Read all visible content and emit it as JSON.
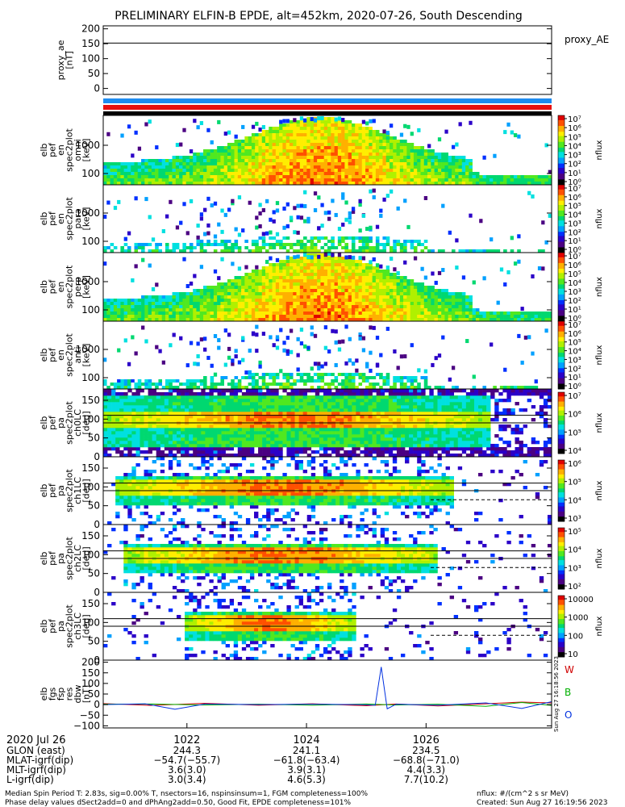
{
  "title": "PRELIMINARY ELFIN-B EPDE, alt=452km, 2020-07-26, South Descending",
  "colors": {
    "ae_line": "#000000",
    "flag_blue": "#1e8cf0",
    "flag_red": "#e81010",
    "flag_black": "#000000",
    "comp_w": "#d00000",
    "comp_b": "#00b000",
    "comp_o": "#0030e0",
    "colormap": [
      "#000000",
      "#4b0082",
      "#2b00c8",
      "#0030ff",
      "#00a0ff",
      "#00e0e0",
      "#00d870",
      "#50e820",
      "#b0f000",
      "#ffee00",
      "#ffb000",
      "#ff5000",
      "#e00000"
    ]
  },
  "chart_data": [
    {
      "type": "line",
      "panel": "proxy_ae",
      "ylabel_lines": [
        "proxy_ae",
        "[nT]"
      ],
      "right_label": "proxy_AE",
      "ylim": [
        -20,
        210
      ],
      "yticks": [
        "0",
        "50",
        "100",
        "150",
        "200"
      ],
      "series": [
        {
          "x": [
            1020.6,
            1028.1
          ],
          "y": [
            152,
            152
          ]
        }
      ]
    },
    {
      "type": "heatmap",
      "panel": "energy-omni",
      "ylabel_lines": [
        "elb",
        "pef",
        "en",
        "spec2plot",
        "omni",
        "[keV]"
      ],
      "yscale": "log",
      "yticks": [
        "100",
        "1000"
      ],
      "colorbar": {
        "label": "nflux",
        "ticks": [
          "10⁰",
          "10¹",
          "10²",
          "10³",
          "10⁴",
          "10⁵",
          "10⁶",
          "10⁷"
        ]
      }
    },
    {
      "type": "heatmap",
      "panel": "energy-para",
      "ylabel_lines": [
        "elb",
        "pef",
        "en",
        "spec2plot",
        "para",
        "[keV]"
      ],
      "yscale": "log",
      "yticks": [
        "100",
        "1000"
      ],
      "colorbar": {
        "label": "nflux",
        "ticks": [
          "10⁰",
          "10¹",
          "10²",
          "10³",
          "10⁴",
          "10⁵",
          "10⁶",
          "10⁷"
        ]
      }
    },
    {
      "type": "heatmap",
      "panel": "energy-perp",
      "ylabel_lines": [
        "elb",
        "pef",
        "en",
        "spec2plot",
        "perp",
        "[keV]"
      ],
      "yscale": "log",
      "yticks": [
        "100",
        "1000"
      ],
      "colorbar": {
        "label": "nflux",
        "ticks": [
          "10⁰",
          "10¹",
          "10²",
          "10³",
          "10⁴",
          "10⁵",
          "10⁶",
          "10⁷"
        ]
      }
    },
    {
      "type": "heatmap",
      "panel": "energy-anti",
      "ylabel_lines": [
        "elb",
        "pef",
        "en",
        "spec2plot",
        "anti",
        "[keV]"
      ],
      "yscale": "log",
      "yticks": [
        "100",
        "1000"
      ],
      "colorbar": {
        "label": "nflux",
        "ticks": [
          "10⁰",
          "10¹",
          "10²",
          "10³",
          "10⁴",
          "10⁵",
          "10⁶",
          "10⁷"
        ]
      }
    },
    {
      "type": "heatmap",
      "panel": "pa-ch0",
      "ylabel_lines": [
        "elb",
        "pef",
        "pa",
        "spec2plot",
        "ch0LC",
        "[deg]"
      ],
      "ylim": [
        0,
        180
      ],
      "yticks": [
        "0",
        "50",
        "100",
        "150"
      ],
      "colorbar": {
        "label": "nflux",
        "ticks": [
          "10⁴",
          "10⁵",
          "10⁶",
          "10⁷"
        ]
      }
    },
    {
      "type": "heatmap",
      "panel": "pa-ch1",
      "ylabel_lines": [
        "elb",
        "pef",
        "pa",
        "spec2plot",
        "ch1LC",
        "[deg]"
      ],
      "ylim": [
        0,
        180
      ],
      "yticks": [
        "0",
        "50",
        "100",
        "150"
      ],
      "colorbar": {
        "label": "nflux",
        "ticks": [
          "10³",
          "10⁴",
          "10⁵",
          "10⁶"
        ]
      }
    },
    {
      "type": "heatmap",
      "panel": "pa-ch2",
      "ylabel_lines": [
        "elb",
        "pef",
        "pa",
        "spec2plot",
        "ch2LC",
        "[deg]"
      ],
      "ylim": [
        0,
        180
      ],
      "yticks": [
        "0",
        "50",
        "100",
        "150"
      ],
      "colorbar": {
        "label": "nflux",
        "ticks": [
          "10²",
          "10³",
          "10⁴",
          "10⁵"
        ]
      }
    },
    {
      "type": "heatmap",
      "panel": "pa-ch3",
      "ylabel_lines": [
        "elb",
        "pef",
        "pa",
        "spec2plot",
        "ch3LC",
        "[deg]"
      ],
      "ylim": [
        0,
        180
      ],
      "yticks": [
        "0",
        "50",
        "100",
        "150"
      ],
      "colorbar": {
        "label": "nflux",
        "ticks": [
          "10",
          "100",
          "1000",
          "10000"
        ]
      }
    },
    {
      "type": "line",
      "panel": "fgs-dbw",
      "ylabel_lines": [
        "elb",
        "fgs",
        "fsp",
        "res",
        "dbw",
        "[nT]"
      ],
      "ylim": [
        -110,
        210
      ],
      "yticks": [
        "−100",
        "−50",
        "0",
        "50",
        "100",
        "150",
        "200"
      ],
      "legend": [
        "W",
        "B",
        "O"
      ],
      "series": [
        {
          "name": "W",
          "x": [
            1020.6,
            1021.4,
            1022.3,
            1023.2,
            1024.1,
            1025.0,
            1025.5,
            1026.2,
            1027.0,
            1027.6,
            1028.1
          ],
          "y": [
            5,
            -4,
            6,
            -3,
            4,
            -5,
            3,
            -6,
            4,
            12,
            8
          ]
        },
        {
          "name": "B",
          "x": [
            1020.6,
            1021.4,
            1022.3,
            1023.2,
            1024.1,
            1025.0,
            1025.5,
            1026.2,
            1027.0,
            1027.6,
            1028.1
          ],
          "y": [
            2,
            3,
            -2,
            2,
            -3,
            3,
            -2,
            2,
            -8,
            10,
            -4
          ]
        },
        {
          "name": "O",
          "x": [
            1020.6,
            1021.3,
            1021.8,
            1022.3,
            1023.2,
            1024.1,
            1024.9,
            1025.15,
            1025.25,
            1025.35,
            1025.5,
            1026.2,
            1027.0,
            1027.6,
            1028.1
          ],
          "y": [
            0,
            4,
            -22,
            3,
            0,
            2,
            0,
            -3,
            178,
            -20,
            2,
            -3,
            8,
            -18,
            14
          ]
        }
      ],
      "side_stamp": "Sun Aug 27 16:18:56 2023"
    }
  ],
  "xaxis": {
    "tick_labels": [
      "1022",
      "1024",
      "1026"
    ],
    "tick_values": [
      1022,
      1024,
      1026
    ],
    "range": [
      1020.6,
      1028.1
    ],
    "date_label": "2020 Jul 26",
    "rows": [
      {
        "label": "GLON (east)",
        "values": [
          "244.3",
          "241.1",
          "234.5"
        ]
      },
      {
        "label": "MLAT-igrf(dip)",
        "values": [
          "−54.7(−55.7)",
          "−61.8(−63.4)",
          "−68.8(−71.0)"
        ]
      },
      {
        "label": "MLT-igrf(dip)",
        "values": [
          "3.6(3.0)",
          "3.9(3.1)",
          "4.4(3.3)"
        ]
      },
      {
        "label": "L-igrf(dip)",
        "values": [
          "3.0(3.4)",
          "4.6(5.3)",
          "7.7(10.2)"
        ]
      }
    ]
  },
  "footer": {
    "line1": "Median Spin Period T: 2.83s, sig=0.00% T, nsectors=16, nspinsinsum=1, FGM completeness=100%",
    "line2": "Phase delay values dSect2add=0 and dPhAng2add=0.50, Good Fit, EPDE completeness=101%",
    "units": "nflux: #/(cm^2 s sr MeV)",
    "created": "Created: Sun Aug 27 16:19:56 2023"
  }
}
